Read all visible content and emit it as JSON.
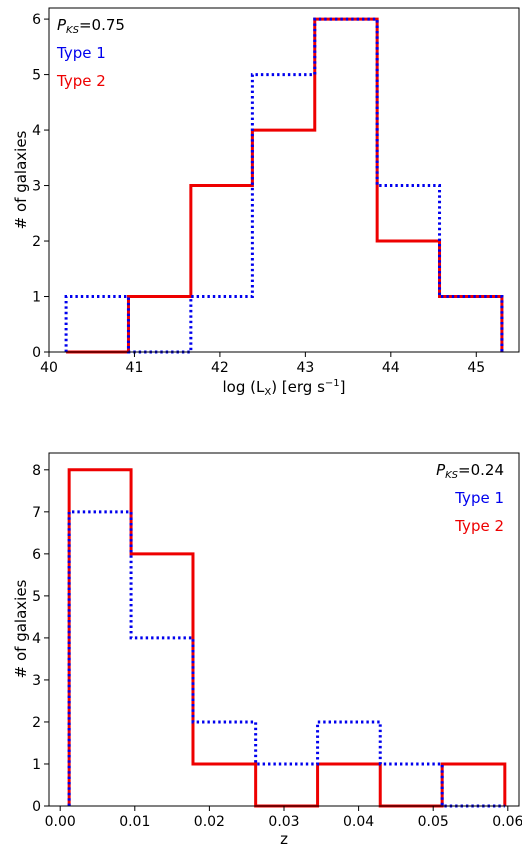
{
  "chart_data": [
    {
      "type": "step-histogram",
      "xlabel": "log (L",
      "xlabel_sub": "X",
      "xlabel_tail": ") [erg s",
      "xlabel_sup": "−1",
      "xlabel_close": "]",
      "ylabel": "# of galaxies",
      "xlim": [
        40.0,
        45.5
      ],
      "ylim": [
        0,
        6.2
      ],
      "xticks": [
        40,
        41,
        42,
        43,
        44,
        45
      ],
      "xtick_labels": [
        "40",
        "41",
        "42",
        "43",
        "44",
        "45"
      ],
      "yticks": [
        0,
        1,
        2,
        3,
        4,
        5,
        6
      ],
      "ytick_labels": [
        "0",
        "1",
        "2",
        "3",
        "4",
        "5",
        "6"
      ],
      "stat_label": "P",
      "stat_sub": "KS",
      "stat_value": "=0.75",
      "legend_position": "top-left",
      "bin_edges": [
        40.2,
        40.93,
        41.66,
        42.38,
        43.11,
        43.84,
        44.57,
        45.3
      ],
      "series": [
        {
          "name": "Type 1",
          "color": "#0000ee",
          "style": "dotted",
          "values": [
            1,
            0,
            1,
            5,
            6,
            3,
            1
          ]
        },
        {
          "name": "Type 2",
          "color": "#ee0000",
          "style": "solid",
          "values": [
            0,
            1,
            3,
            4,
            6,
            2,
            1
          ]
        }
      ]
    },
    {
      "type": "step-histogram",
      "xlabel": "z",
      "ylabel": "# of galaxies",
      "xlim": [
        -0.0015,
        0.0615
      ],
      "ylim": [
        0,
        8.4
      ],
      "xticks": [
        0,
        0.01,
        0.02,
        0.03,
        0.04,
        0.05,
        0.06
      ],
      "xtick_labels": [
        "0.00",
        "0.01",
        "0.02",
        "0.03",
        "0.04",
        "0.05",
        "0.06"
      ],
      "yticks": [
        0,
        1,
        2,
        3,
        4,
        5,
        6,
        7,
        8
      ],
      "ytick_labels": [
        "0",
        "1",
        "2",
        "3",
        "4",
        "5",
        "6",
        "7",
        "8"
      ],
      "stat_label": "P",
      "stat_sub": "KS",
      "stat_value": "=0.24",
      "legend_position": "top-right",
      "bin_edges": [
        0.0012,
        0.0095,
        0.0178,
        0.0262,
        0.0345,
        0.0429,
        0.0512,
        0.0596
      ],
      "series": [
        {
          "name": "Type 1",
          "color": "#0000ee",
          "style": "dotted",
          "values": [
            7,
            4,
            2,
            1,
            2,
            1,
            0
          ]
        },
        {
          "name": "Type 2",
          "color": "#ee0000",
          "style": "solid",
          "values": [
            8,
            6,
            1,
            0,
            1,
            0,
            1
          ]
        }
      ]
    }
  ]
}
